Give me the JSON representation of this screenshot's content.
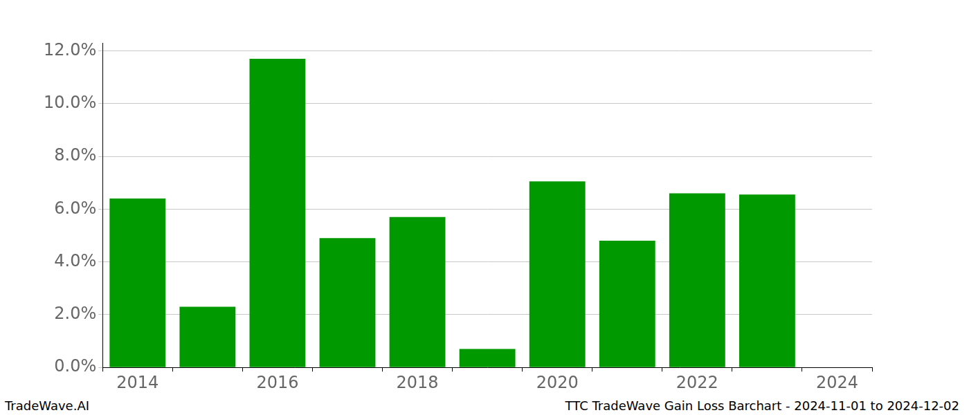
{
  "chart_data": {
    "type": "bar",
    "title": "TTC TradeWave Gain Loss Barchart - 2024-11-01 to 2024-12-02",
    "annotations": [
      "TradeWave.AI"
    ],
    "categories": [
      "2014",
      null,
      "2016",
      null,
      "2018",
      null,
      "2020",
      null,
      "2022",
      null,
      "2024"
    ],
    "values": [
      6.4,
      2.3,
      11.7,
      4.9,
      5.7,
      0.7,
      7.05,
      4.8,
      6.6,
      6.55,
      null
    ],
    "color": "#009900",
    "ylim": [
      0,
      12.3
    ],
    "yticks": [
      {
        "value": 0,
        "label": "0.0%"
      },
      {
        "value": 2,
        "label": "2.0%"
      },
      {
        "value": 4,
        "label": "4.0%"
      },
      {
        "value": 6,
        "label": "6.0%"
      },
      {
        "value": 8,
        "label": "8.0%"
      },
      {
        "value": 10,
        "label": "10.0%"
      },
      {
        "value": 12,
        "label": "12.0%"
      }
    ],
    "grid": true
  }
}
